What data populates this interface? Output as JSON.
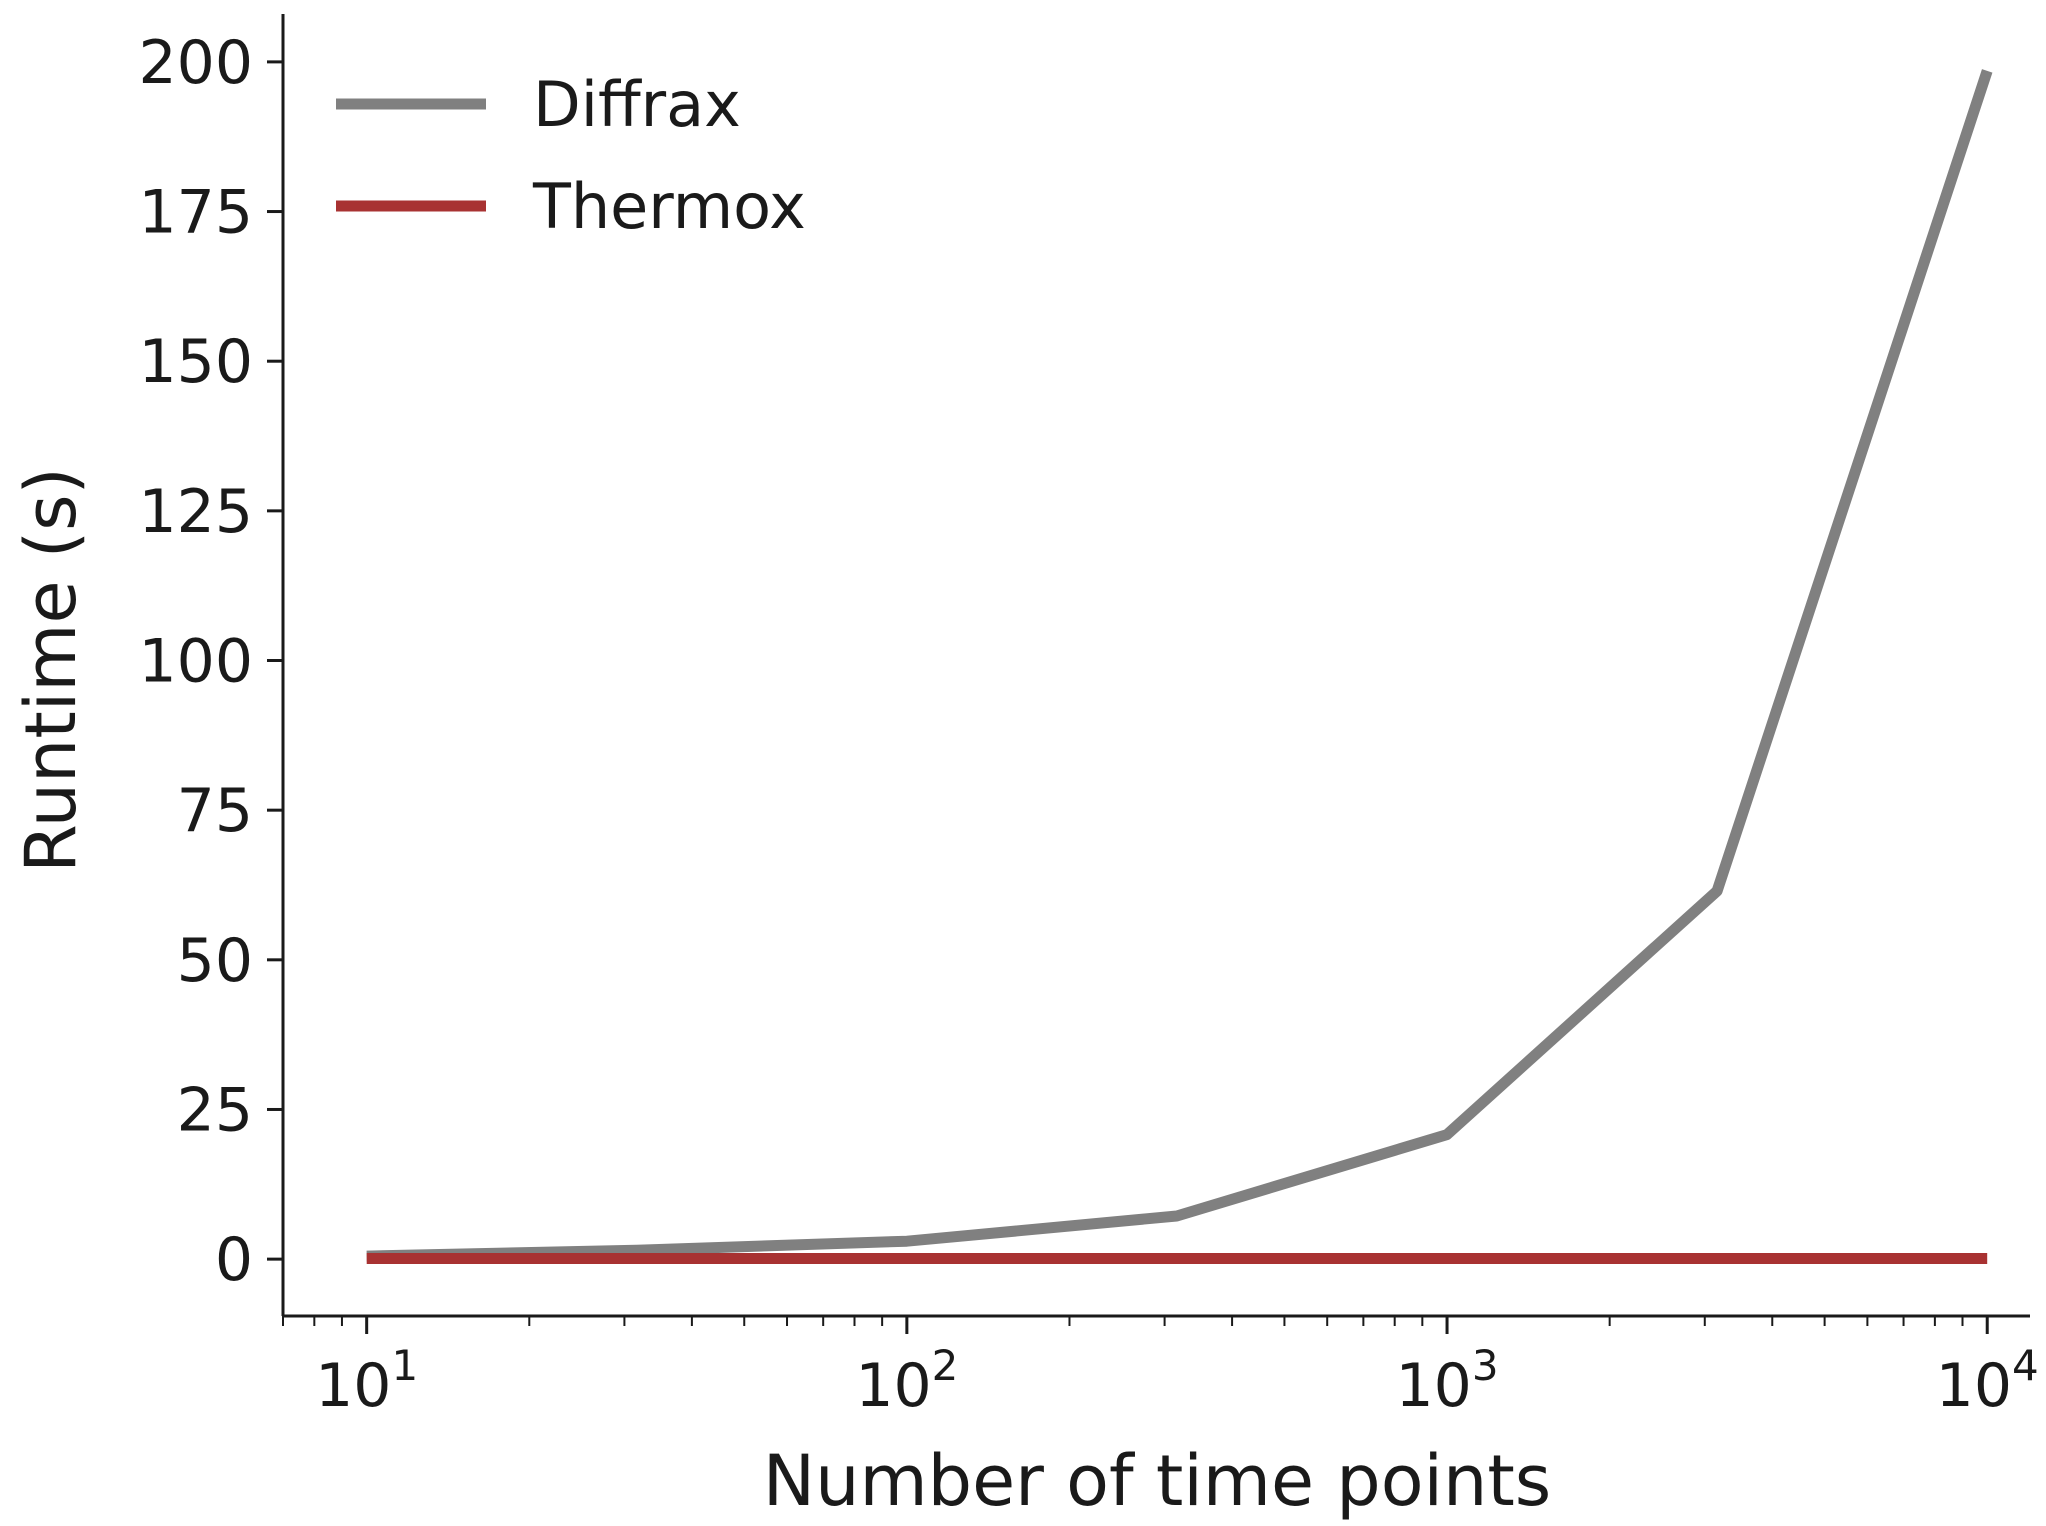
{
  "chart_data": {
    "type": "line",
    "xscale": "log",
    "xlabel": "Number of time points",
    "ylabel": "Runtime (s)",
    "xlim": [
      7,
      12000
    ],
    "ylim": [
      -9.5,
      208
    ],
    "xticks": [
      {
        "value": 10,
        "base": "10",
        "exp": "1"
      },
      {
        "value": 100,
        "base": "10",
        "exp": "2"
      },
      {
        "value": 1000,
        "base": "10",
        "exp": "3"
      },
      {
        "value": 10000,
        "base": "10",
        "exp": "4"
      }
    ],
    "yticks": [
      0,
      25,
      50,
      75,
      100,
      125,
      150,
      175,
      200
    ],
    "yticklabels": [
      "0",
      "25",
      "50",
      "75",
      "100",
      "125",
      "150",
      "175",
      "200"
    ],
    "grid": false,
    "legend": {
      "position": "top-left"
    },
    "series": [
      {
        "name": "Diffrax",
        "color": "#808080",
        "x": [
          10,
          31.6,
          100,
          316,
          1000,
          3162,
          10000
        ],
        "y": [
          0.5,
          1.5,
          3.0,
          7.2,
          20.8,
          61.5,
          198.5
        ]
      },
      {
        "name": "Thermox",
        "color": "#a83232",
        "x": [
          10,
          31.6,
          100,
          316,
          1000,
          3162,
          10000
        ],
        "y": [
          0.1,
          0.1,
          0.1,
          0.1,
          0.1,
          0.1,
          0.1
        ]
      }
    ]
  }
}
